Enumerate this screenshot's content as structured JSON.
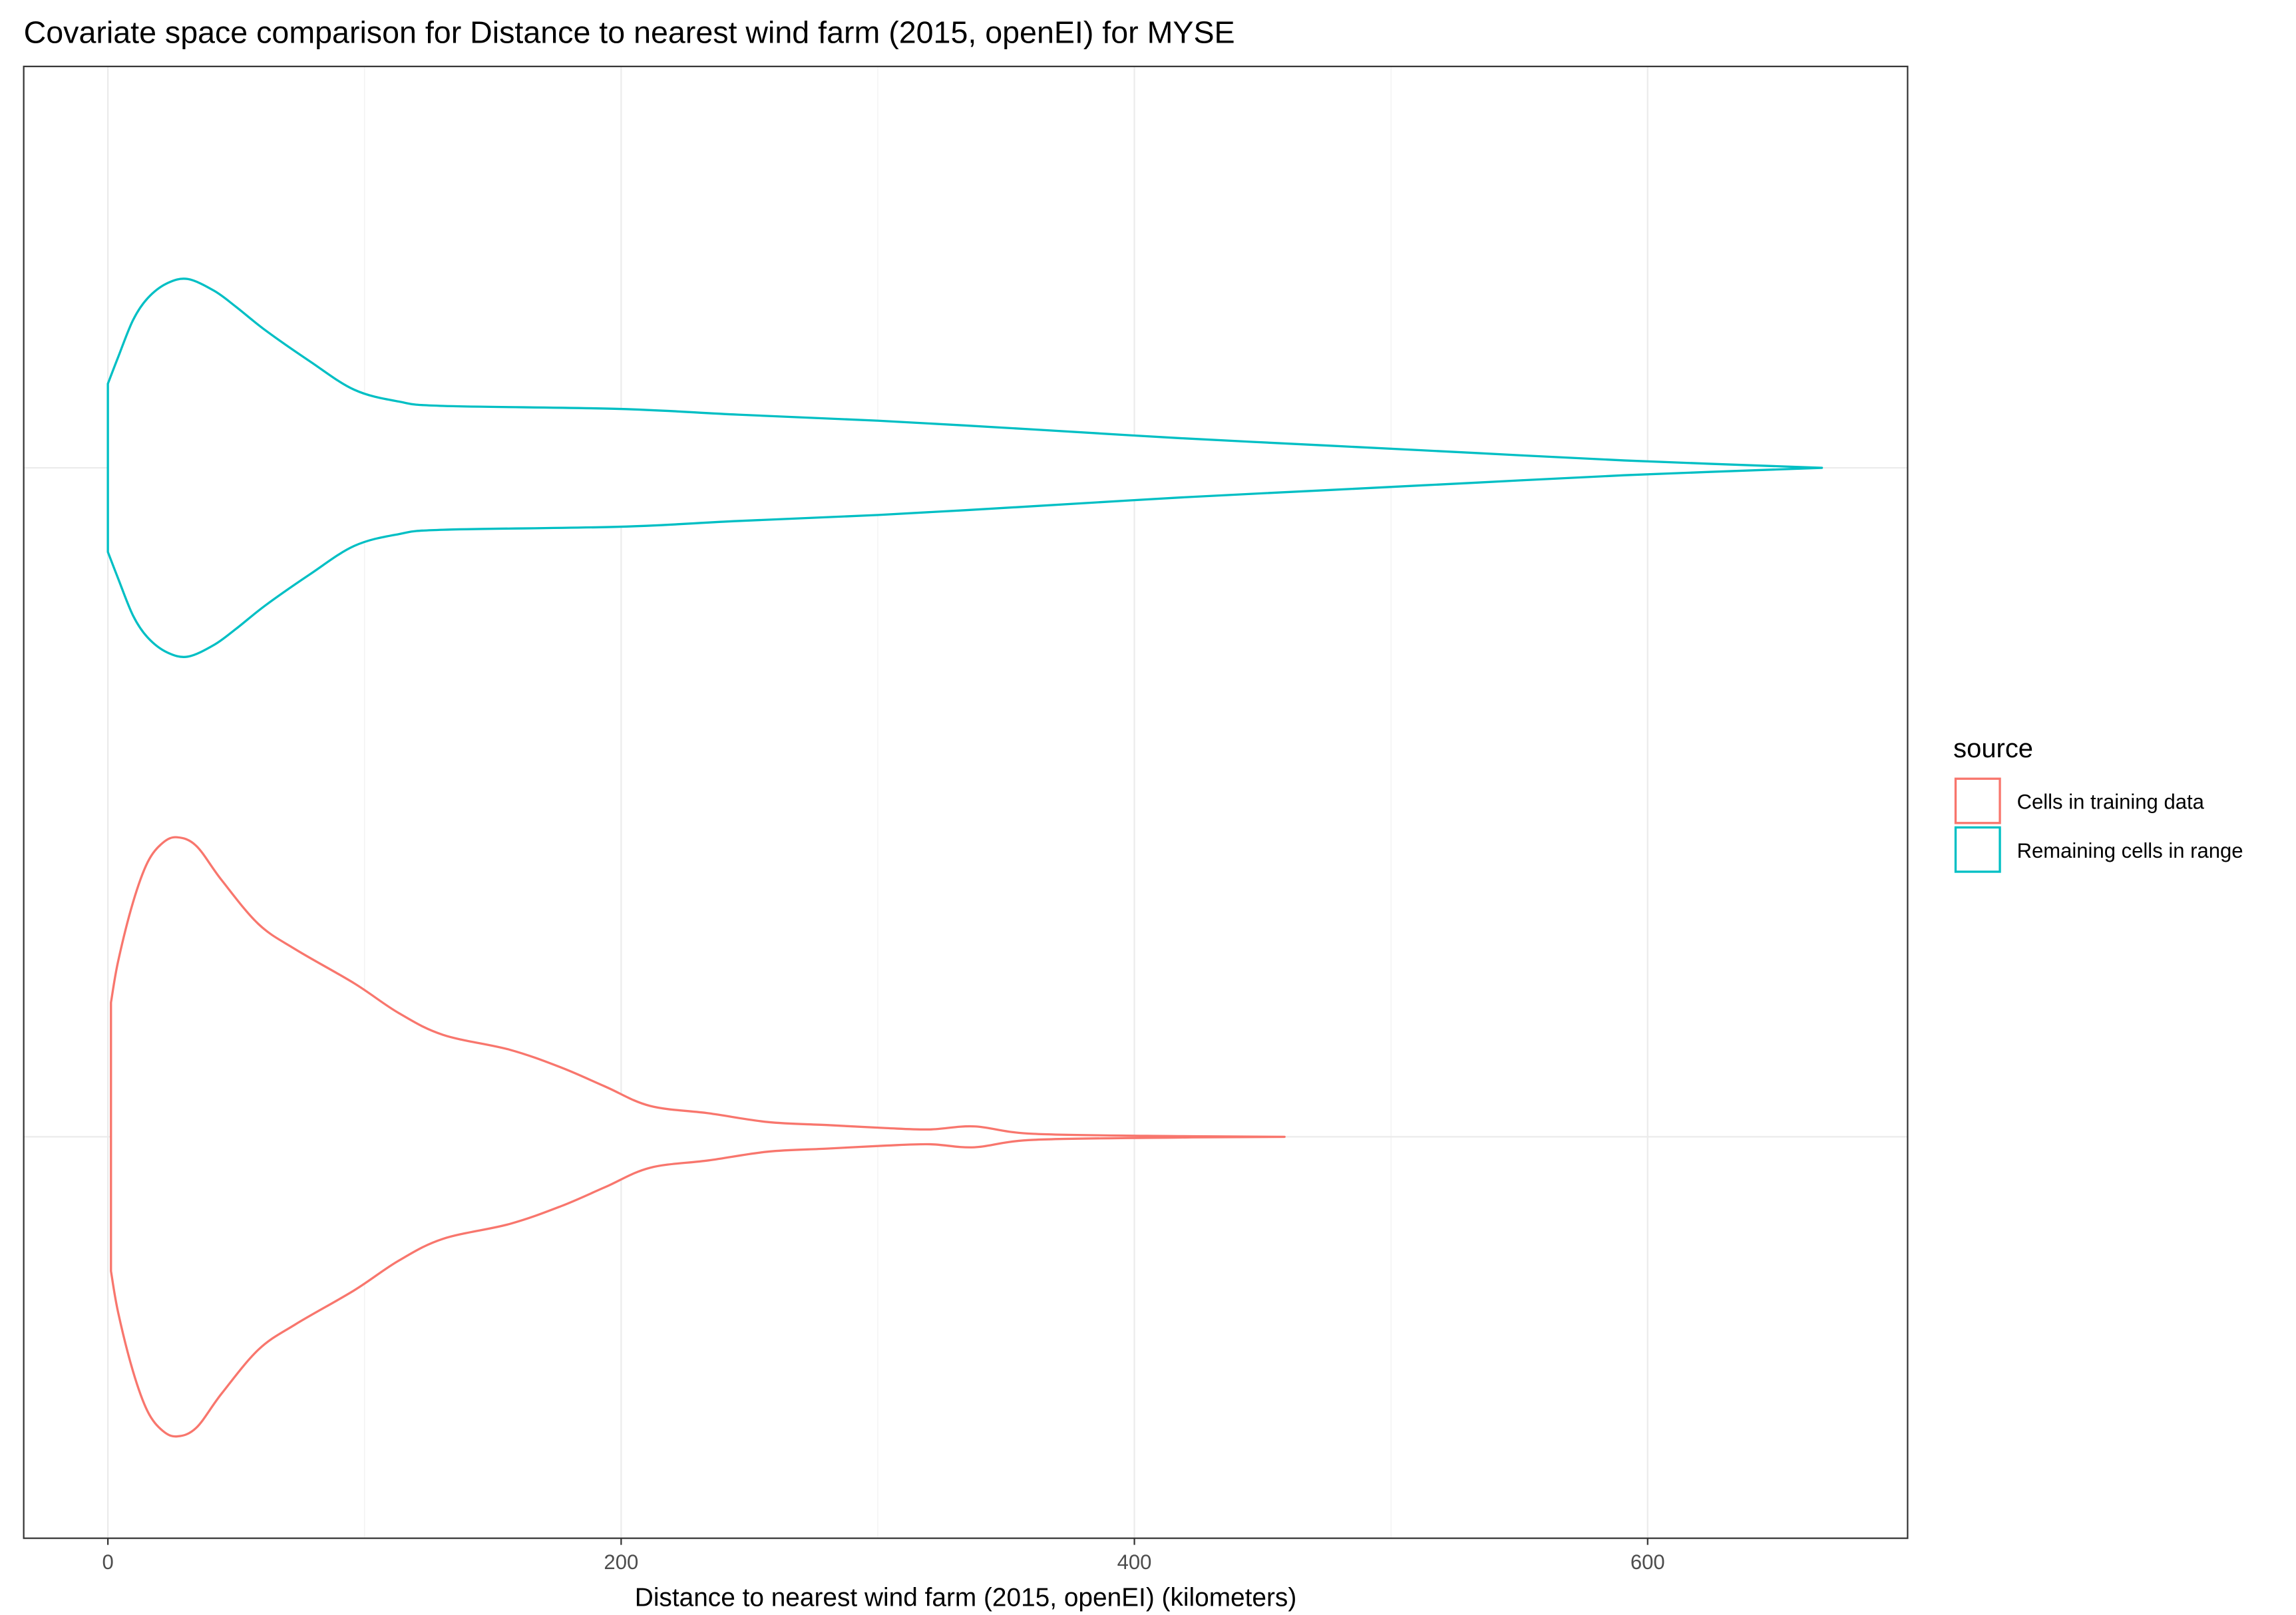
{
  "chart_data": {
    "type": "area",
    "style": "violin",
    "orientation": "horizontal",
    "title": "Covariate space comparison for Distance to nearest wind farm (2015, openEI) for MYSE",
    "xlabel": "Distance to nearest wind farm (2015, openEI) (kilometers)",
    "ylabel": "",
    "xlim": [
      -32.8,
      701.3
    ],
    "xticks": [
      0,
      200,
      400,
      600
    ],
    "xtick_labels": [
      "0",
      "200",
      "400",
      "600"
    ],
    "grid": true,
    "legend": {
      "title": "source",
      "position": "right"
    },
    "series": [
      {
        "name": "Cells in training data",
        "color": "#F8766D",
        "x": [
          1.2,
          4.0,
          9.8,
          15.5,
          21.3,
          27.0,
          34.5,
          44.3,
          58.7,
          73.1,
          96.0,
          113.3,
          130.6,
          156.5,
          176.6,
          193.9,
          211.2,
          234.1,
          257.2,
          280.2,
          303.2,
          320.4,
          337.7,
          360.7,
          418.2,
          458.5
        ],
        "density": [
          0.00399,
          0.00522,
          0.00697,
          0.00816,
          0.00873,
          0.0089,
          0.00864,
          0.00763,
          0.00632,
          0.00557,
          0.00456,
          0.00368,
          0.00303,
          0.00259,
          0.00206,
          0.00149,
          0.00092,
          0.0007,
          0.00044,
          0.00035,
          0.00026,
          0.00022,
          0.00031,
          9e-05,
          2e-05,
          0
        ]
      },
      {
        "name": "Remaining cells in range",
        "color": "#00BFC4",
        "x": [
          0,
          4.0,
          9.8,
          15.5,
          23.0,
          31.1,
          41.4,
          50.0,
          61.5,
          78.8,
          96.0,
          113.3,
          130.6,
          199.6,
          245.6,
          300.3,
          360.7,
          418.2,
          475.8,
          533.3,
          590.8,
          667.9
        ],
        "density": [
          0.0025,
          0.00329,
          0.00439,
          0.00504,
          0.00548,
          0.00561,
          0.00526,
          0.00478,
          0.00408,
          0.00316,
          0.00232,
          0.00197,
          0.00184,
          0.00175,
          0.00158,
          0.0014,
          0.00114,
          0.00088,
          0.00066,
          0.00044,
          0.00022,
          0
        ]
      }
    ]
  }
}
